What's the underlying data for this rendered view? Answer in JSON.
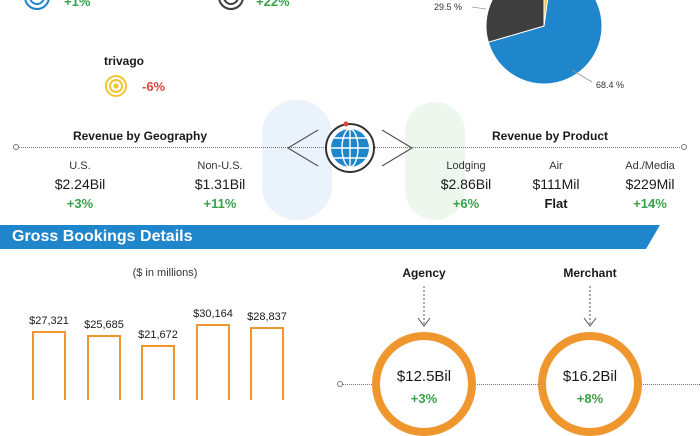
{
  "brands": {
    "top_left_change": "+1%",
    "top_mid_change": "+22%",
    "trivago_name": "trivago",
    "trivago_change": "-6%"
  },
  "colors": {
    "blue": "#1f86cc",
    "orange": "#f0962e",
    "green": "#3aa14a",
    "red": "#d9463a",
    "dark": "#3e3e3e",
    "yellow": "#f4c430"
  },
  "revenue_geo": {
    "title": "Revenue by Geography",
    "items": [
      {
        "label": "U.S.",
        "value": "$2.24Bil",
        "change": "+3%"
      },
      {
        "label": "Non-U.S.",
        "value": "$1.31Bil",
        "change": "+11%"
      }
    ]
  },
  "revenue_product": {
    "title": "Revenue by Product",
    "items": [
      {
        "label": "Lodging",
        "value": "$2.86Bil",
        "change": "+6%"
      },
      {
        "label": "Air",
        "value": "$111Mil",
        "change": "Flat"
      },
      {
        "label": "Ad./Media",
        "value": "$229Mil",
        "change": "+14%"
      }
    ]
  },
  "gross_bookings": {
    "title": "Gross Bookings Details",
    "unit_note": "($ in millions)",
    "agency": {
      "label": "Agency",
      "value": "$12.5Bil",
      "change": "+3%"
    },
    "merchant": {
      "label": "Merchant",
      "value": "$16.2Bil",
      "change": "+8%"
    }
  },
  "chart_data": [
    {
      "type": "pie",
      "labels": [
        "68.4 %",
        "29.5 %",
        ""
      ],
      "values": [
        68.4,
        29.5,
        2.1
      ]
    },
    {
      "type": "bar",
      "title": "",
      "ylabel": "($ in millions)",
      "categories": [
        "",
        "",
        "",
        "",
        ""
      ],
      "values": [
        27321,
        25685,
        21672,
        30164,
        28837
      ],
      "value_labels": [
        "$27,321",
        "$25,685",
        "$21,672",
        "$30,164",
        "$28,837"
      ],
      "ylim": [
        0,
        30164
      ]
    }
  ]
}
